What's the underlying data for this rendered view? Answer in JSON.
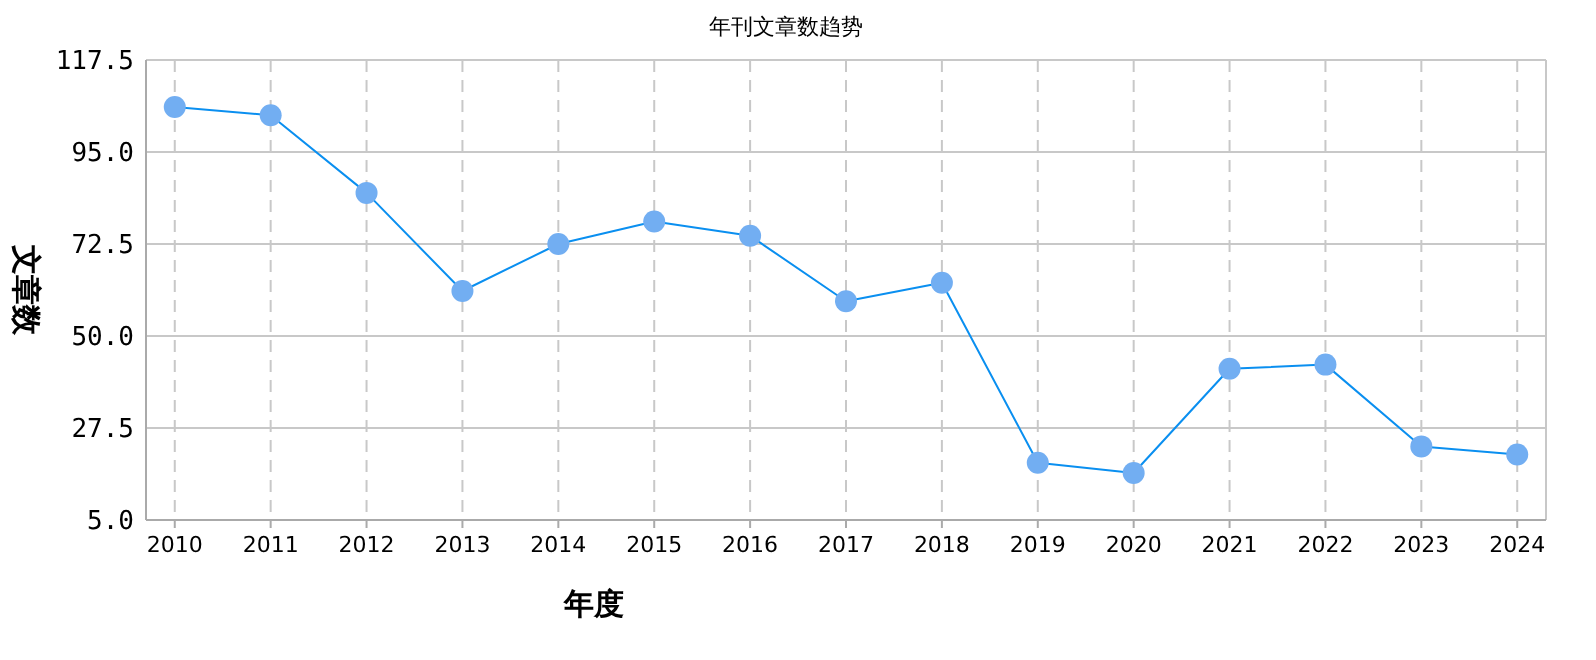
{
  "chart_data": {
    "type": "line",
    "title": "年刊文章数趋势",
    "xlabel": "年度",
    "ylabel": "文章数",
    "categories": [
      "2010",
      "2011",
      "2012",
      "2013",
      "2014",
      "2015",
      "2016",
      "2017",
      "2018",
      "2019",
      "2020",
      "2021",
      "2022",
      "2023",
      "2024"
    ],
    "series": [
      {
        "color": "#0a8ff0",
        "values": [
          106,
          104,
          85,
          61,
          72.5,
          78,
          74.5,
          58.5,
          63,
          19,
          16.5,
          42,
          43,
          23,
          21
        ]
      }
    ],
    "ylim": [
      5,
      117.5
    ],
    "yticks": [
      {
        "value": 5,
        "label": "5.0"
      },
      {
        "value": 27.5,
        "label": "27.5"
      },
      {
        "value": 50,
        "label": "50.0"
      },
      {
        "value": 72.5,
        "label": "72.5"
      },
      {
        "value": 95,
        "label": "95.0"
      },
      {
        "value": 117.5,
        "label": "117.5"
      }
    ],
    "grid": true,
    "marker": "circle",
    "line_style": "solid"
  }
}
